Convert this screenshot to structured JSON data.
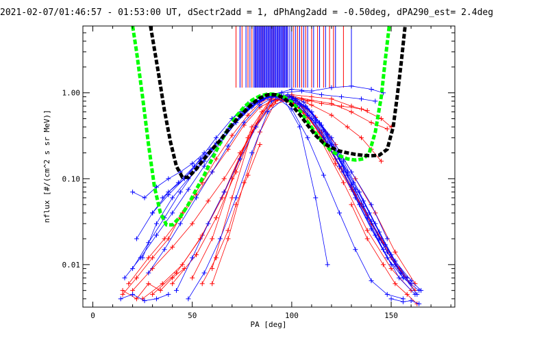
{
  "chart_data": {
    "type": "line",
    "title": "2021-02-07/01:46:57 - 01:53:00 UT, dSectr2add = 1, dPhAng2add = -0.50deg, dPA290_est=   2.4deg",
    "xlabel": "PA [deg]",
    "ylabel": "nflux [#/(cm^2 s sr MeV)]",
    "xlim": [
      -5,
      182
    ],
    "ylim": [
      0.0032,
      6.0
    ],
    "yscale": "log",
    "xticks": [
      0,
      50,
      100,
      150
    ],
    "xtick_labels": [
      "0",
      "50",
      "100",
      "150"
    ],
    "yticks": [
      0.01,
      0.1,
      1.0
    ],
    "ytick_labels": [
      "0.01",
      "0.10",
      "1.00"
    ],
    "grid": false,
    "legend": "none",
    "colors": {
      "series_red": "#ff0000",
      "series_blue": "#0000ff",
      "fit_green": "#00ff00",
      "fit_black": "#000000",
      "axes": "#000000"
    },
    "marker": "plus",
    "series": [
      {
        "color": "red",
        "x": [
          15,
          22,
          30,
          38,
          45,
          55,
          62,
          70,
          78,
          85,
          92,
          100,
          108,
          115,
          122,
          130,
          140,
          148,
          155,
          160
        ],
        "y": [
          0.0045,
          0.007,
          0.012,
          0.02,
          0.04,
          0.09,
          0.17,
          0.32,
          0.55,
          0.8,
          0.9,
          0.8,
          0.55,
          0.3,
          0.15,
          0.075,
          0.03,
          0.014,
          0.008,
          0.006
        ]
      },
      {
        "color": "red",
        "x": [
          18,
          28,
          36,
          44,
          52,
          60,
          68,
          76,
          84,
          92,
          100,
          108,
          116,
          124,
          132,
          140,
          150,
          158
        ],
        "y": [
          0.006,
          0.012,
          0.02,
          0.035,
          0.065,
          0.12,
          0.22,
          0.42,
          0.68,
          0.85,
          0.78,
          0.52,
          0.29,
          0.14,
          0.065,
          0.03,
          0.012,
          0.007
        ]
      },
      {
        "color": "red",
        "x": [
          20,
          30,
          40,
          50,
          58,
          66,
          74,
          82,
          90,
          98,
          106,
          114,
          122,
          130,
          138,
          146,
          154,
          162
        ],
        "y": [
          0.005,
          0.009,
          0.016,
          0.03,
          0.055,
          0.1,
          0.2,
          0.4,
          0.72,
          0.82,
          0.6,
          0.35,
          0.17,
          0.08,
          0.038,
          0.018,
          0.009,
          0.005
        ]
      },
      {
        "color": "red",
        "x": [
          25,
          35,
          45,
          55,
          65,
          75,
          85,
          95,
          105,
          115,
          125,
          135,
          145,
          155
        ],
        "y": [
          0.004,
          0.006,
          0.01,
          0.022,
          0.06,
          0.2,
          0.6,
          0.9,
          0.7,
          0.35,
          0.13,
          0.05,
          0.02,
          0.008
        ]
      },
      {
        "color": "red",
        "x": [
          30,
          42,
          54,
          66,
          78,
          90,
          102,
          114,
          126,
          138,
          150,
          160
        ],
        "y": [
          0.0045,
          0.008,
          0.02,
          0.07,
          0.3,
          0.85,
          0.75,
          0.3,
          0.09,
          0.025,
          0.009,
          0.005
        ]
      },
      {
        "color": "red",
        "x": [
          40,
          52,
          62,
          72,
          82,
          92,
          102,
          112,
          122,
          132,
          142,
          152,
          162
        ],
        "y": [
          0.006,
          0.013,
          0.035,
          0.12,
          0.42,
          0.85,
          0.82,
          0.52,
          0.25,
          0.1,
          0.04,
          0.014,
          0.006
        ]
      },
      {
        "color": "red",
        "x": [
          60,
          70,
          80,
          90,
          100,
          110,
          120,
          130,
          140,
          148
        ],
        "y": [
          0.009,
          0.06,
          0.35,
          0.88,
          0.92,
          0.82,
          0.75,
          0.6,
          0.45,
          0.38
        ]
      },
      {
        "color": "red",
        "x": [
          50,
          60,
          70,
          80,
          90,
          100,
          110,
          120,
          130,
          138
        ],
        "y": [
          0.007,
          0.02,
          0.1,
          0.4,
          0.9,
          0.95,
          0.9,
          0.85,
          0.7,
          0.62
        ]
      },
      {
        "color": "red",
        "x": [
          60,
          68,
          76,
          84,
          92,
          100,
          108
        ],
        "y": [
          0.006,
          0.02,
          0.09,
          0.35,
          0.8,
          0.9,
          0.8
        ]
      },
      {
        "color": "red",
        "x": [
          55,
          62,
          68,
          72,
          78,
          84
        ],
        "y": [
          0.006,
          0.012,
          0.025,
          0.05,
          0.11,
          0.25
        ]
      },
      {
        "color": "red",
        "x": [
          130,
          138,
          146,
          152,
          158,
          163
        ],
        "y": [
          0.05,
          0.02,
          0.01,
          0.006,
          0.0045,
          0.0035
        ]
      },
      {
        "color": "red",
        "x": [
          95,
          105,
          115,
          125,
          135,
          145,
          150
        ],
        "y": [
          0.92,
          0.85,
          0.75,
          0.7,
          0.65,
          0.5,
          0.4
        ]
      },
      {
        "color": "red",
        "x": [
          80,
          90,
          100,
          110,
          120,
          128,
          135,
          140,
          145
        ],
        "y": [
          0.75,
          0.95,
          0.9,
          0.72,
          0.55,
          0.4,
          0.3,
          0.22,
          0.16
        ]
      },
      {
        "color": "red",
        "x": [
          15,
          22,
          28,
          34,
          40,
          46
        ],
        "y": [
          0.005,
          0.004,
          0.006,
          0.005,
          0.007,
          0.009
        ]
      },
      {
        "color": "blue",
        "x": [
          16,
          24,
          32,
          40,
          48,
          56,
          64,
          72,
          80,
          88,
          96,
          104,
          112,
          120,
          128,
          136,
          144,
          152,
          160,
          165
        ],
        "y": [
          0.007,
          0.012,
          0.022,
          0.04,
          0.075,
          0.14,
          0.26,
          0.45,
          0.68,
          0.88,
          0.9,
          0.72,
          0.45,
          0.24,
          0.12,
          0.055,
          0.024,
          0.011,
          0.0065,
          0.005
        ]
      },
      {
        "color": "blue",
        "x": [
          20,
          28,
          36,
          44,
          52,
          60,
          68,
          76,
          84,
          92,
          100,
          108,
          116,
          124,
          132,
          140,
          148,
          156,
          164
        ],
        "y": [
          0.009,
          0.018,
          0.035,
          0.07,
          0.13,
          0.22,
          0.38,
          0.6,
          0.82,
          0.92,
          0.82,
          0.55,
          0.3,
          0.14,
          0.06,
          0.026,
          0.012,
          0.007,
          0.005
        ]
      },
      {
        "color": "blue",
        "x": [
          25,
          32,
          40,
          48,
          56,
          64,
          72,
          80,
          88,
          96,
          104,
          112,
          120,
          128,
          136,
          144,
          152,
          160
        ],
        "y": [
          0.012,
          0.03,
          0.06,
          0.1,
          0.16,
          0.27,
          0.45,
          0.7,
          0.9,
          0.92,
          0.75,
          0.48,
          0.25,
          0.11,
          0.048,
          0.02,
          0.01,
          0.006
        ]
      },
      {
        "color": "blue",
        "x": [
          30,
          38,
          46,
          54,
          62,
          70,
          78,
          86,
          94,
          102,
          110,
          118,
          126,
          134,
          142,
          150,
          158
        ],
        "y": [
          0.04,
          0.07,
          0.1,
          0.16,
          0.26,
          0.42,
          0.65,
          0.86,
          0.95,
          0.85,
          0.6,
          0.33,
          0.16,
          0.07,
          0.03,
          0.013,
          0.007
        ]
      },
      {
        "color": "blue",
        "x": [
          35,
          43,
          51,
          59,
          67,
          75,
          83,
          91,
          99,
          107,
          115,
          123,
          131,
          139,
          147,
          155,
          163
        ],
        "y": [
          0.06,
          0.09,
          0.14,
          0.22,
          0.35,
          0.55,
          0.78,
          0.93,
          0.9,
          0.7,
          0.42,
          0.2,
          0.09,
          0.04,
          0.017,
          0.008,
          0.0045
        ]
      },
      {
        "color": "blue",
        "x": [
          22,
          30,
          38,
          46,
          54,
          62,
          70,
          78,
          86,
          94,
          102,
          110,
          118,
          126,
          134,
          142,
          150
        ],
        "y": [
          0.02,
          0.04,
          0.065,
          0.1,
          0.17,
          0.3,
          0.5,
          0.75,
          0.92,
          0.95,
          0.8,
          0.5,
          0.26,
          0.12,
          0.05,
          0.022,
          0.01
        ]
      },
      {
        "color": "blue",
        "x": [
          28,
          36,
          44,
          52,
          60,
          68,
          76,
          84,
          92,
          100,
          108,
          116,
          124,
          132,
          140,
          148,
          156
        ],
        "y": [
          0.008,
          0.015,
          0.03,
          0.06,
          0.12,
          0.24,
          0.45,
          0.72,
          0.92,
          0.9,
          0.65,
          0.37,
          0.17,
          0.075,
          0.032,
          0.014,
          0.007
        ]
      },
      {
        "color": "blue",
        "x": [
          42,
          50,
          58,
          66,
          74,
          82,
          90,
          98,
          106,
          114,
          122,
          130,
          138,
          146,
          154,
          162
        ],
        "y": [
          0.005,
          0.012,
          0.03,
          0.07,
          0.17,
          0.4,
          0.8,
          0.95,
          0.78,
          0.45,
          0.2,
          0.085,
          0.035,
          0.015,
          0.007,
          0.0045
        ]
      },
      {
        "color": "blue",
        "x": [
          70,
          80,
          90,
          100,
          110,
          120,
          130,
          140,
          146
        ],
        "y": [
          0.5,
          0.75,
          0.95,
          1.1,
          1.05,
          1.15,
          1.2,
          1.1,
          1.0
        ]
      },
      {
        "color": "blue",
        "x": [
          75,
          85,
          95,
          105,
          115,
          125,
          135,
          142
        ],
        "y": [
          0.6,
          0.85,
          1.0,
          1.05,
          0.95,
          0.9,
          0.85,
          0.8
        ]
      },
      {
        "color": "blue",
        "x": [
          100,
          110,
          120,
          130,
          140,
          148
        ],
        "y": [
          0.85,
          0.6,
          0.3,
          0.12,
          0.05,
          0.02
        ]
      },
      {
        "color": "blue",
        "x": [
          92,
          100,
          108,
          116,
          124,
          132,
          140,
          148,
          156
        ],
        "y": [
          0.9,
          0.65,
          0.3,
          0.11,
          0.04,
          0.015,
          0.0065,
          0.0045,
          0.004
        ]
      },
      {
        "color": "blue",
        "x": [
          20,
          26,
          32,
          38,
          44,
          50,
          56
        ],
        "y": [
          0.07,
          0.06,
          0.08,
          0.1,
          0.12,
          0.15,
          0.2
        ]
      },
      {
        "color": "blue",
        "x": [
          14,
          20,
          26,
          32,
          38
        ],
        "y": [
          0.004,
          0.0045,
          0.0038,
          0.004,
          0.0045
        ]
      },
      {
        "color": "blue",
        "x": [
          150,
          156,
          160,
          164
        ],
        "y": [
          0.004,
          0.0037,
          0.0038,
          0.0035
        ]
      },
      {
        "color": "blue",
        "x": [
          48,
          56,
          64,
          72,
          80,
          88,
          96,
          104,
          112,
          118
        ],
        "y": [
          0.004,
          0.008,
          0.02,
          0.06,
          0.2,
          0.6,
          0.85,
          0.4,
          0.06,
          0.01
        ]
      }
    ],
    "fits": [
      {
        "color": "green",
        "style": "dashed",
        "x": [
          20,
          22,
          25,
          28,
          31,
          34,
          37,
          40,
          44,
          48,
          52,
          56,
          60,
          64,
          68,
          72,
          76,
          80,
          84,
          88,
          92,
          96,
          100,
          104,
          108,
          112,
          116,
          120,
          124,
          128,
          132,
          136,
          139,
          142,
          145,
          147,
          149
        ],
        "y": [
          6.0,
          3.0,
          0.9,
          0.25,
          0.08,
          0.04,
          0.029,
          0.029,
          0.036,
          0.05,
          0.075,
          0.11,
          0.17,
          0.26,
          0.38,
          0.53,
          0.68,
          0.82,
          0.92,
          0.97,
          0.96,
          0.9,
          0.78,
          0.62,
          0.46,
          0.34,
          0.26,
          0.21,
          0.185,
          0.17,
          0.165,
          0.17,
          0.2,
          0.35,
          0.9,
          2.4,
          6.0
        ]
      },
      {
        "color": "black",
        "style": "dashed",
        "x": [
          29,
          31,
          33,
          36,
          39,
          42,
          45,
          48,
          52,
          56,
          60,
          64,
          68,
          72,
          76,
          80,
          84,
          88,
          92,
          96,
          100,
          104,
          108,
          112,
          116,
          120,
          124,
          128,
          132,
          136,
          140,
          144,
          148,
          151,
          153,
          155,
          157
        ],
        "y": [
          6.0,
          3.2,
          1.7,
          0.62,
          0.27,
          0.14,
          0.104,
          0.104,
          0.13,
          0.17,
          0.22,
          0.28,
          0.37,
          0.48,
          0.6,
          0.74,
          0.87,
          0.95,
          0.95,
          0.87,
          0.72,
          0.56,
          0.42,
          0.32,
          0.26,
          0.23,
          0.21,
          0.2,
          0.192,
          0.187,
          0.185,
          0.188,
          0.22,
          0.4,
          0.9,
          2.2,
          6.0
        ]
      }
    ],
    "top_lines": {
      "y_range": [
        1.15,
        6.0
      ],
      "red_x": [
        72,
        75,
        78,
        80,
        82,
        84,
        85,
        86,
        88,
        89,
        90,
        91,
        93,
        94,
        96,
        98,
        99,
        101,
        103,
        105,
        107,
        110,
        113,
        116,
        119,
        121,
        126
      ],
      "blue_x": [
        74,
        77,
        79,
        81,
        81.5,
        82,
        82.5,
        83,
        83.5,
        84,
        84.5,
        85,
        85.5,
        86,
        86.5,
        87,
        87.5,
        88,
        88.5,
        89,
        89.5,
        90,
        90.5,
        91,
        91.5,
        92,
        92.5,
        93,
        93.5,
        94,
        94.5,
        95,
        95.5,
        96,
        96.5,
        97,
        97.5,
        98,
        99,
        100,
        102,
        104,
        106,
        108,
        111,
        114,
        117,
        122,
        130
      ]
    }
  }
}
